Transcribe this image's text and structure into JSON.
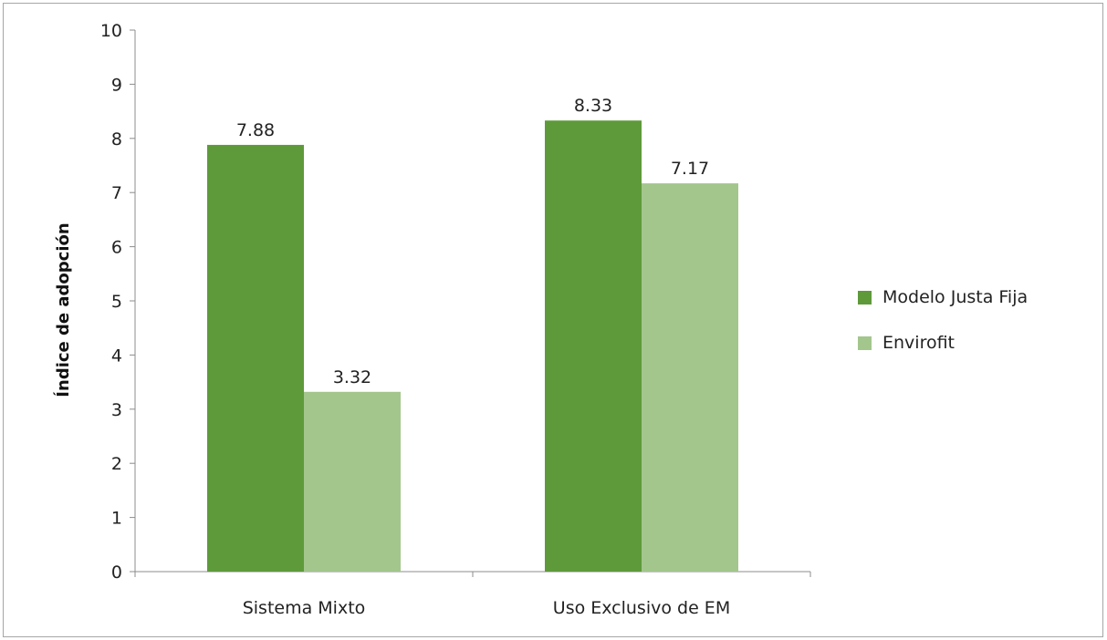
{
  "chart_data": {
    "type": "bar",
    "title": "",
    "xlabel": "",
    "ylabel": "Índice de adopción",
    "categories": [
      "Sistema Mixto",
      "Uso Exclusivo de EM"
    ],
    "series": [
      {
        "name": "Modelo Justa Fija",
        "values": [
          7.88,
          8.33
        ],
        "labels": [
          "7.88",
          "8.33"
        ],
        "color": "#5e9a3a"
      },
      {
        "name": "Envirofit",
        "values": [
          3.32,
          7.17
        ],
        "labels": [
          "3.32",
          "7.17"
        ],
        "color": "#a3c68d"
      }
    ],
    "ylim": [
      0,
      10
    ],
    "yticks": [
      0,
      1,
      2,
      3,
      4,
      5,
      6,
      7,
      8,
      9,
      10
    ],
    "grid": false,
    "legend_position": "right"
  }
}
